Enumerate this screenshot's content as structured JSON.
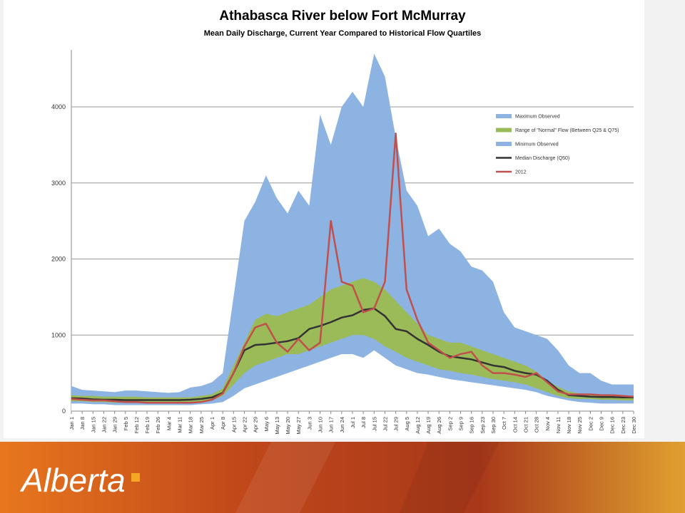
{
  "chart_data": {
    "type": "area",
    "title": "Athabasca River below Fort McMurray",
    "subtitle": "Mean Daily Discharge, Current Year Compared to Historical Flow Quartiles",
    "categories": [
      "Jan 1",
      "Jan 8",
      "Jan 15",
      "Jan 22",
      "Jan 29",
      "Feb 5",
      "Feb 12",
      "Feb 19",
      "Feb 26",
      "Mar 4",
      "Mar 11",
      "Mar 18",
      "Mar 25",
      "Apr 1",
      "Apr 8",
      "Apr 15",
      "Apr 22",
      "Apr 29",
      "May 6",
      "May 13",
      "May 20",
      "May 27",
      "Jun 3",
      "Jun 10",
      "Jun 17",
      "Jun 24",
      "Jul 1",
      "Jul 8",
      "Jul 15",
      "Jul 22",
      "Jul 29",
      "Aug 5",
      "Aug 12",
      "Aug 19",
      "Aug 26",
      "Sep 2",
      "Sep 9",
      "Sep 16",
      "Sep 23",
      "Sep 30",
      "Oct 7",
      "Oct 14",
      "Oct 21",
      "Oct 28",
      "Nov 4",
      "Nov 11",
      "Nov 18",
      "Nov 25",
      "Dec 2",
      "Dec 9",
      "Dec 16",
      "Dec 23",
      "Dec 30"
    ],
    "series": [
      {
        "name": "Maximum Observed",
        "style": "area",
        "color": "#8db3e2",
        "values": [
          330,
          280,
          270,
          260,
          250,
          270,
          270,
          260,
          250,
          240,
          250,
          310,
          330,
          380,
          500,
          1500,
          2500,
          2750,
          3100,
          2800,
          2600,
          2900,
          2700,
          3900,
          3500,
          4000,
          4200,
          4000,
          4700,
          4400,
          3600,
          2900,
          2700,
          2300,
          2400,
          2200,
          2100,
          1900,
          1850,
          1700,
          1300,
          1100,
          1050,
          1000,
          950,
          800,
          600,
          500,
          500,
          400,
          350,
          350,
          350
        ]
      },
      {
        "name": "Range of \"Normal\" Flow (Between Q25 & Q75)",
        "style": "band",
        "color": "#9bbb59",
        "low": [
          130,
          130,
          120,
          120,
          110,
          110,
          110,
          110,
          110,
          110,
          110,
          110,
          120,
          140,
          200,
          350,
          500,
          600,
          650,
          700,
          750,
          750,
          800,
          850,
          900,
          950,
          1000,
          1000,
          950,
          850,
          780,
          700,
          650,
          600,
          550,
          530,
          500,
          480,
          450,
          420,
          400,
          380,
          350,
          300,
          250,
          200,
          170,
          160,
          160,
          150,
          150,
          140,
          140
        ],
        "high": [
          210,
          200,
          200,
          190,
          190,
          190,
          190,
          180,
          180,
          180,
          180,
          180,
          200,
          220,
          300,
          600,
          900,
          1200,
          1280,
          1250,
          1300,
          1350,
          1400,
          1500,
          1600,
          1650,
          1700,
          1750,
          1700,
          1600,
          1450,
          1300,
          1150,
          1000,
          950,
          900,
          900,
          850,
          800,
          750,
          700,
          650,
          600,
          520,
          400,
          320,
          260,
          230,
          220,
          210,
          210,
          200,
          200
        ]
      },
      {
        "name": "Minimum Observed",
        "style": "floor",
        "color": "#8db3e2",
        "values": [
          100,
          100,
          90,
          90,
          80,
          80,
          80,
          80,
          80,
          80,
          80,
          80,
          90,
          100,
          120,
          200,
          300,
          350,
          400,
          450,
          500,
          550,
          600,
          650,
          700,
          750,
          750,
          700,
          800,
          700,
          600,
          550,
          500,
          480,
          450,
          420,
          400,
          380,
          360,
          340,
          320,
          300,
          280,
          250,
          200,
          170,
          140,
          120,
          110,
          100,
          100,
          100,
          100
        ]
      },
      {
        "name": "Median Discharge (Q50)",
        "style": "line",
        "color": "#333333",
        "values": [
          170,
          165,
          155,
          150,
          150,
          145,
          145,
          145,
          145,
          145,
          145,
          150,
          160,
          180,
          240,
          500,
          800,
          870,
          880,
          900,
          920,
          960,
          1080,
          1120,
          1170,
          1230,
          1260,
          1330,
          1350,
          1250,
          1080,
          1050,
          950,
          870,
          780,
          720,
          700,
          680,
          640,
          600,
          580,
          530,
          500,
          480,
          400,
          280,
          210,
          200,
          190,
          185,
          185,
          180,
          180
        ]
      },
      {
        "name": "2012",
        "style": "line",
        "color": "#c0504d",
        "values": [
          160,
          150,
          140,
          140,
          130,
          120,
          120,
          110,
          110,
          110,
          110,
          110,
          120,
          150,
          230,
          500,
          850,
          1100,
          1150,
          900,
          780,
          950,
          800,
          900,
          2500,
          1700,
          1650,
          1300,
          1350,
          1700,
          3650,
          1600,
          1200,
          900,
          800,
          700,
          750,
          780,
          600,
          500,
          500,
          480,
          450,
          500,
          380,
          260,
          220,
          220,
          220,
          210,
          210,
          200,
          190
        ]
      }
    ],
    "ylim": [
      0,
      4750
    ],
    "yticks": [
      0,
      1000,
      2000,
      3000,
      4000
    ],
    "grid": true,
    "plot_background": "#ffffff",
    "legend": "upper right"
  },
  "brand": "Alberta"
}
